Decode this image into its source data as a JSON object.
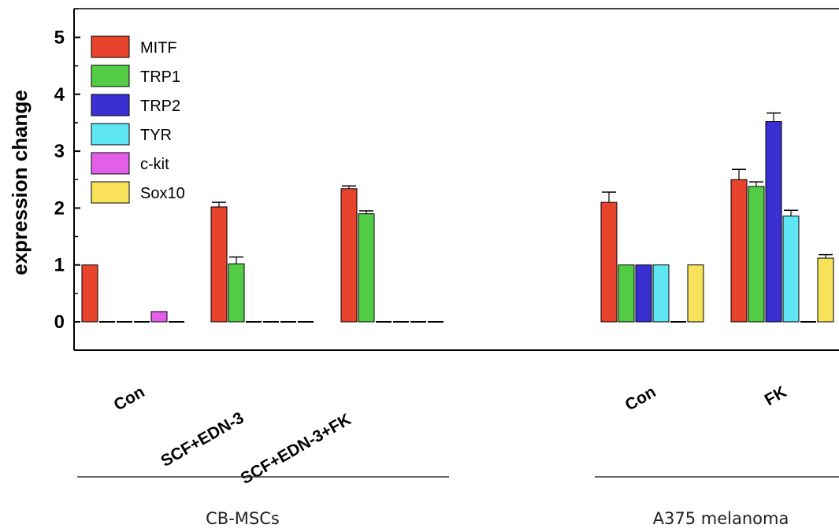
{
  "chart_data": {
    "type": "bar",
    "ylabel": "expression change",
    "ylim": [
      -0.5,
      5.5
    ],
    "yticks": [
      "0",
      "1",
      "2",
      "3",
      "4",
      "5"
    ],
    "legend_position": "top-left",
    "categories": [
      "Con",
      "SCF+EDN-3",
      "SCF+EDN-3+FK",
      "Con",
      "FK"
    ],
    "groups": [
      {
        "label": "CB-MSCs",
        "categories": [
          "Con",
          "SCF+EDN-3",
          "SCF+EDN-3+FK"
        ]
      },
      {
        "label": "A375 melanoma",
        "categories": [
          "Con",
          "FK"
        ]
      }
    ],
    "series": [
      {
        "name": "MITF",
        "color": "#e8432d",
        "values": [
          1.0,
          2.02,
          2.34,
          2.1,
          2.5
        ],
        "errors": [
          0,
          0.08,
          0.05,
          0.18,
          0.18
        ]
      },
      {
        "name": "TRP1",
        "color": "#52cc44",
        "values": [
          0.0,
          1.02,
          1.9,
          1.0,
          2.38
        ],
        "errors": [
          0,
          0.12,
          0.05,
          0,
          0.08
        ]
      },
      {
        "name": "TRP2",
        "color": "#3a2fd0",
        "values": [
          0.0,
          0.0,
          0.0,
          1.0,
          3.52
        ],
        "errors": [
          0,
          0,
          0,
          0,
          0.15
        ]
      },
      {
        "name": "TYR",
        "color": "#5fe6f5",
        "values": [
          0.0,
          0.0,
          0.0,
          1.0,
          1.86
        ],
        "errors": [
          0,
          0,
          0,
          0,
          0.1
        ]
      },
      {
        "name": "c-kit",
        "color": "#e45fe8",
        "values": [
          0.18,
          0.0,
          0.0,
          0.0,
          0.0
        ],
        "errors": [
          0,
          0,
          0,
          0,
          0
        ]
      },
      {
        "name": "Sox10",
        "color": "#f8e25a",
        "values": [
          0.0,
          0.0,
          0.0,
          1.0,
          1.12
        ],
        "errors": [
          0,
          0,
          0,
          0,
          0.06
        ]
      }
    ]
  }
}
